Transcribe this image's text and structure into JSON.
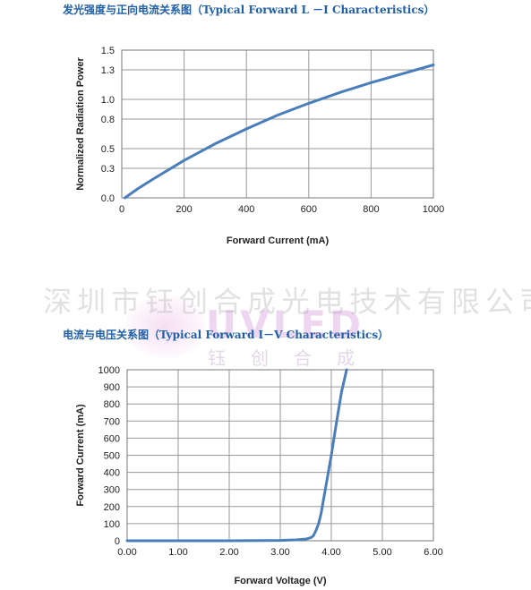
{
  "watermark": {
    "company": "深圳市钰创合成光电技术有限公司",
    "logo": "UVLED",
    "sub": "钰创合成"
  },
  "colors": {
    "line": "#4a7ebb",
    "title": "#1f5fa8",
    "grid": "#9a9a9a"
  },
  "chart_data": [
    {
      "type": "line",
      "title": "发光强度与正向电流关系图（Typical Forward L －I Characteristics）",
      "xlabel": "Forward Current (mA)",
      "ylabel": "Normalized Radiation Power",
      "xlim": [
        0,
        1000
      ],
      "ylim": [
        0,
        1.5
      ],
      "xticks": [
        0,
        200,
        400,
        600,
        800,
        1000
      ],
      "xtick_labels": [
        "0",
        "200",
        "400",
        "600",
        "800",
        "1000"
      ],
      "yticks": [
        0,
        0.3,
        0.5,
        0.8,
        1.0,
        1.3,
        1.5
      ],
      "ytick_labels": [
        "0.0",
        "0.3",
        "0.5",
        "0.8",
        "1.0",
        "1.3",
        "1.5"
      ],
      "grid": true,
      "series": [
        {
          "x": [
            10,
            50,
            100,
            200,
            300,
            400,
            500,
            600,
            700,
            800,
            900,
            1000
          ],
          "y": [
            0.0,
            0.09,
            0.19,
            0.38,
            0.55,
            0.7,
            0.84,
            0.96,
            1.07,
            1.17,
            1.26,
            1.35
          ]
        }
      ]
    },
    {
      "type": "line",
      "title": "电流与电压关系图（Typical Forward I－V Characteristics）",
      "xlabel": "Forward Voltage (V)",
      "ylabel": "Forward Current (mA)",
      "xlim": [
        0,
        6
      ],
      "ylim": [
        0,
        1000
      ],
      "xticks": [
        0,
        1,
        2,
        3,
        4,
        5,
        6
      ],
      "xtick_labels": [
        "0.00",
        "1.00",
        "2.00",
        "3.00",
        "4.00",
        "5.00",
        "6.00"
      ],
      "yticks": [
        0,
        100,
        200,
        300,
        400,
        500,
        600,
        700,
        800,
        900,
        1000
      ],
      "ytick_labels": [
        "0",
        "100",
        "200",
        "300",
        "400",
        "500",
        "600",
        "700",
        "800",
        "900",
        "1000"
      ],
      "grid": true,
      "series": [
        {
          "x": [
            0.0,
            2.0,
            3.0,
            3.3,
            3.5,
            3.6,
            3.65,
            3.7,
            3.75,
            3.8,
            3.9,
            4.0,
            4.1,
            4.2,
            4.3
          ],
          "y": [
            0,
            0,
            2,
            5,
            10,
            18,
            30,
            60,
            100,
            160,
            330,
            500,
            690,
            870,
            1000
          ]
        }
      ]
    }
  ]
}
